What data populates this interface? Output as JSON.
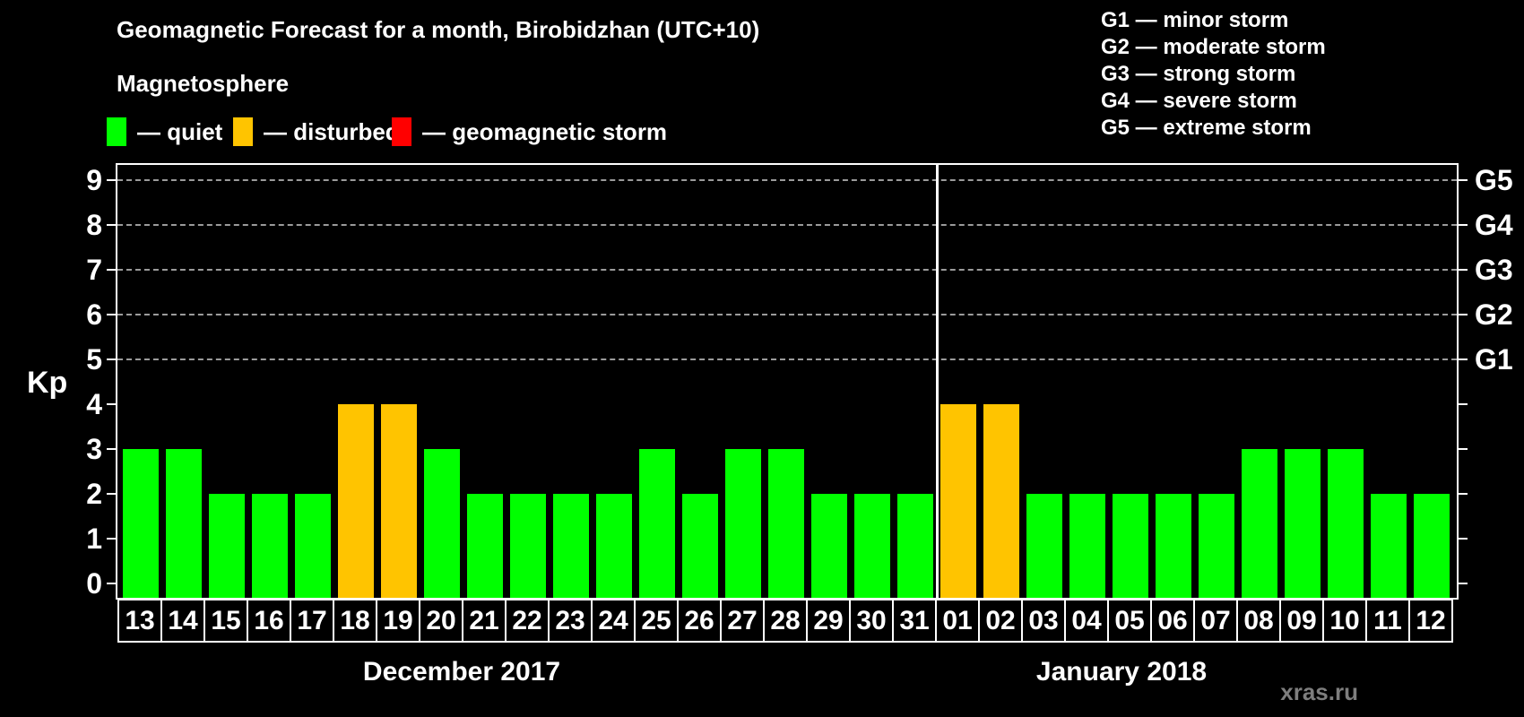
{
  "title": "Geomagnetic Forecast for a month, Birobidzhan (UTC+10)",
  "subtitle": "Magnetosphere",
  "status_legend": [
    {
      "name": "quiet",
      "label": "— quiet",
      "color": "#00ff00"
    },
    {
      "name": "disturbed",
      "label": "— disturbed",
      "color": "#ffc400"
    },
    {
      "name": "storm",
      "label": "— geomagnetic storm",
      "color": "#ff0000"
    }
  ],
  "g_legend": [
    "G1 — minor storm",
    "G2 — moderate storm",
    "G3 — strong storm",
    "G4 — severe storm",
    "G5 — extreme storm"
  ],
  "watermark": "xras.ru",
  "chart_data": {
    "type": "bar",
    "title": "Geomagnetic Forecast for a month, Birobidzhan (UTC+10)",
    "ylabel": "Kp",
    "ylim": [
      0,
      9
    ],
    "left_ticks": [
      "0",
      "1",
      "2",
      "3",
      "4",
      "5",
      "6",
      "7",
      "8",
      "9"
    ],
    "right_ticks": [
      {
        "kp": 5,
        "label": "G1"
      },
      {
        "kp": 6,
        "label": "G2"
      },
      {
        "kp": 7,
        "label": "G3"
      },
      {
        "kp": 8,
        "label": "G4"
      },
      {
        "kp": 9,
        "label": "G5"
      }
    ],
    "grid_kp": [
      5,
      6,
      7,
      8,
      9
    ],
    "legend_position": "top",
    "categories": [
      "13",
      "14",
      "15",
      "16",
      "17",
      "18",
      "19",
      "20",
      "21",
      "22",
      "23",
      "24",
      "25",
      "26",
      "27",
      "28",
      "29",
      "30",
      "31",
      "01",
      "02",
      "03",
      "04",
      "05",
      "06",
      "07",
      "08",
      "09",
      "10",
      "11",
      "12"
    ],
    "values": [
      3,
      3,
      2,
      2,
      2,
      4,
      4,
      3,
      2,
      2,
      2,
      2,
      3,
      2,
      3,
      3,
      2,
      2,
      2,
      4,
      4,
      2,
      2,
      2,
      2,
      2,
      3,
      3,
      3,
      2,
      2
    ],
    "statuses": [
      "quiet",
      "quiet",
      "quiet",
      "quiet",
      "quiet",
      "disturbed",
      "disturbed",
      "quiet",
      "quiet",
      "quiet",
      "quiet",
      "quiet",
      "quiet",
      "quiet",
      "quiet",
      "quiet",
      "quiet",
      "quiet",
      "quiet",
      "disturbed",
      "disturbed",
      "quiet",
      "quiet",
      "quiet",
      "quiet",
      "quiet",
      "quiet",
      "quiet",
      "quiet",
      "quiet",
      "quiet"
    ],
    "status_colors": {
      "quiet": "#00ff00",
      "disturbed": "#ffc400",
      "storm": "#ff0000"
    },
    "separator_after_index": 18,
    "months": [
      {
        "label": "December 2017",
        "days": "13–31"
      },
      {
        "label": "January 2018",
        "days": "01–12"
      }
    ]
  }
}
